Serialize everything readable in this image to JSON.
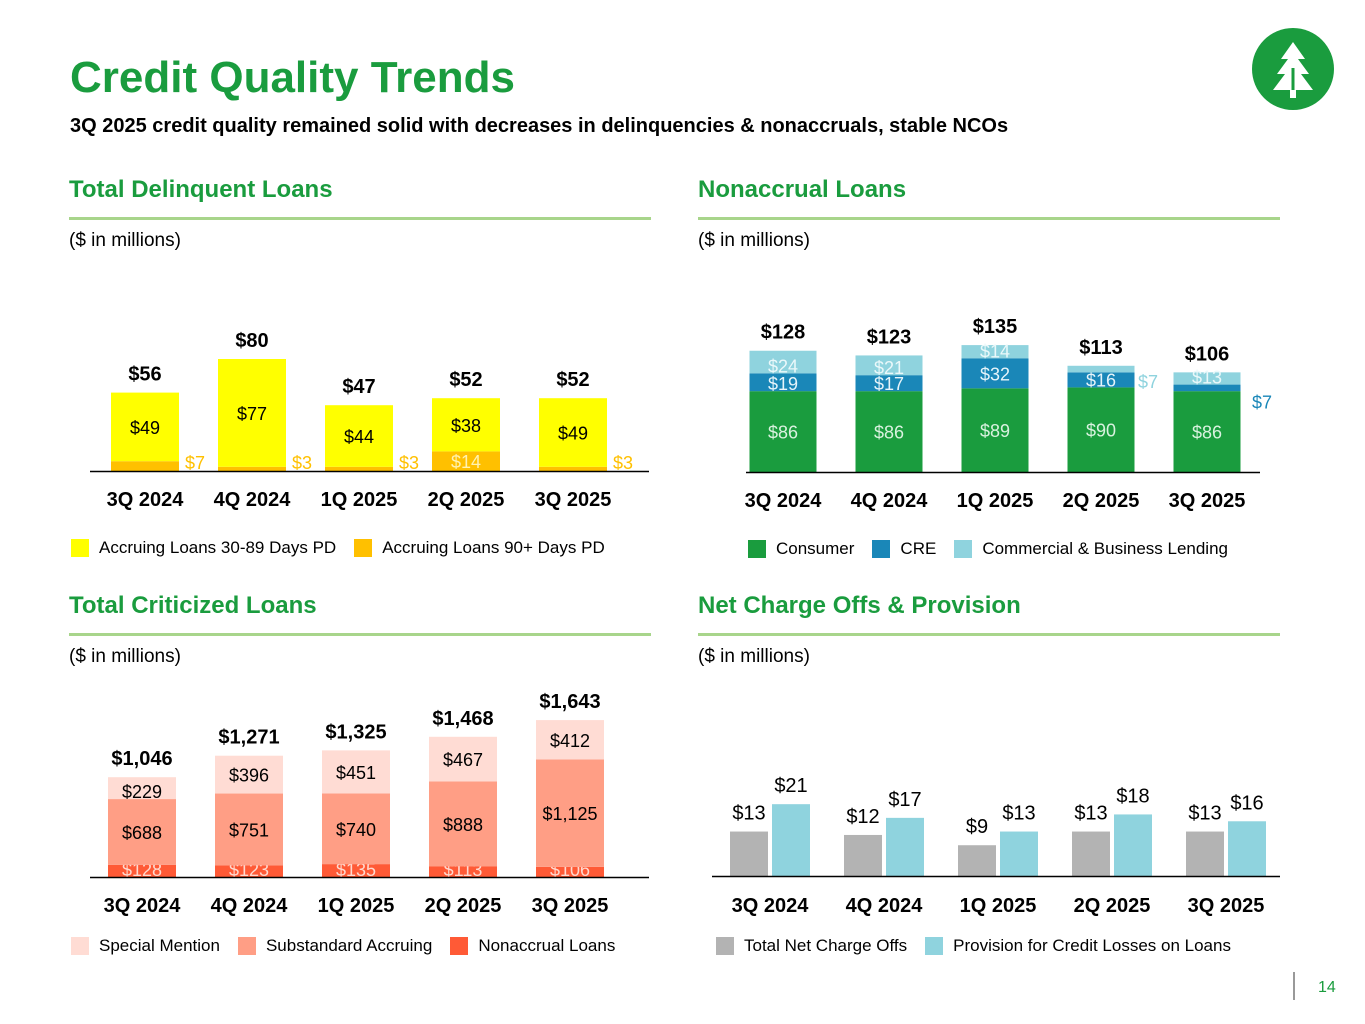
{
  "page": {
    "title": "Credit Quality Trends",
    "subtitle": "3Q 2025 credit quality remained solid with decreases in delinquencies & nonaccruals, stable NCOs",
    "page_number": "14",
    "logo_icon": "tree-logo-icon",
    "brand_color": "#1a9c3e"
  },
  "chart_data": [
    {
      "id": "delinquent",
      "type": "bar",
      "stacked": true,
      "title": "Total Delinquent Loans",
      "units": "($ in millions)",
      "categories": [
        "3Q 2024",
        "4Q 2024",
        "1Q 2025",
        "2Q 2025",
        "3Q 2025"
      ],
      "series": [
        {
          "name": "Accruing Loans 90+ Days PD",
          "color": "#ffc000",
          "label_color": "#ffc000",
          "values": [
            7,
            3,
            3,
            14,
            3
          ],
          "labels": [
            "$7",
            "$3",
            "$3",
            "$14",
            "$3"
          ]
        },
        {
          "name": "Accruing Loans 30-89 Days PD",
          "color": "#ffff00",
          "label_color": "#000000",
          "values": [
            49,
            77,
            44,
            38,
            49
          ],
          "labels": [
            "$49",
            "$77",
            "$44",
            "$38",
            "$49"
          ]
        }
      ],
      "totals": [
        "$56",
        "$80",
        "$47",
        "$52",
        "$52"
      ],
      "legend": [
        {
          "label": "Accruing Loans 30-89 Days PD",
          "color": "#ffff00"
        },
        {
          "label": "Accruing Loans 90+ Days PD",
          "color": "#ffc000"
        }
      ]
    },
    {
      "id": "nonaccrual",
      "type": "bar",
      "stacked": true,
      "title": "Nonaccrual Loans",
      "units": "($ in millions)",
      "categories": [
        "3Q 2024",
        "4Q 2024",
        "1Q 2025",
        "2Q 2025",
        "3Q 2025"
      ],
      "series": [
        {
          "name": "Consumer",
          "color": "#1a9c3e",
          "label_color": "#d9f2df",
          "values": [
            86,
            86,
            89,
            90,
            86
          ],
          "labels": [
            "$86",
            "$86",
            "$89",
            "$90",
            "$86"
          ]
        },
        {
          "name": "CRE",
          "color": "#1a87b8",
          "label_color": "#e6f4fa",
          "values": [
            19,
            17,
            32,
            16,
            7
          ],
          "labels": [
            "$19",
            "$17",
            "$32",
            "$16",
            "$7"
          ]
        },
        {
          "name": "Commercial & Business Lending",
          "color": "#8fd3de",
          "label_color": "#eaf8fa",
          "values": [
            24,
            21,
            14,
            7,
            13
          ],
          "labels": [
            "$24",
            "$21",
            "$14",
            "$7",
            "$13"
          ]
        }
      ],
      "totals": [
        "$128",
        "$123",
        "$135",
        "$113",
        "$106"
      ],
      "legend": [
        {
          "label": "Consumer",
          "color": "#1a9c3e"
        },
        {
          "label": "CRE",
          "color": "#1a87b8"
        },
        {
          "label": "Commercial & Business Lending",
          "color": "#8fd3de"
        }
      ]
    },
    {
      "id": "criticized",
      "type": "bar",
      "stacked": true,
      "title": "Total Criticized Loans",
      "units": "($ in millions)",
      "categories": [
        "3Q 2024",
        "4Q 2024",
        "1Q 2025",
        "2Q 2025",
        "3Q 2025"
      ],
      "series": [
        {
          "name": "Nonaccrual Loans",
          "color": "#ff5a36",
          "label_color": "#ffd9cf",
          "values": [
            128,
            123,
            135,
            113,
            106
          ],
          "labels": [
            "$128",
            "$123",
            "$135",
            "$113",
            "$106"
          ]
        },
        {
          "name": "Substandard Accruing",
          "color": "#ff9e85",
          "label_color": "#000000",
          "values": [
            688,
            751,
            740,
            888,
            1125
          ],
          "labels": [
            "$688",
            "$751",
            "$740",
            "$888",
            "$1,125"
          ]
        },
        {
          "name": "Special Mention",
          "color": "#ffdcd4",
          "label_color": "#000000",
          "values": [
            229,
            396,
            451,
            467,
            412
          ],
          "labels": [
            "$229",
            "$396",
            "$451",
            "$467",
            "$412"
          ]
        }
      ],
      "totals": [
        "$1,046",
        "$1,271",
        "$1,325",
        "$1,468",
        "$1,643"
      ],
      "legend": [
        {
          "label": "Special Mention",
          "color": "#ffdcd4"
        },
        {
          "label": "Substandard Accruing",
          "color": "#ff9e85"
        },
        {
          "label": "Nonaccrual Loans",
          "color": "#ff5a36"
        }
      ]
    },
    {
      "id": "nco",
      "type": "bar",
      "stacked": false,
      "title": "Net Charge Offs & Provision",
      "units": "($ in millions)",
      "categories": [
        "3Q 2024",
        "4Q 2024",
        "1Q 2025",
        "2Q 2025",
        "3Q 2025"
      ],
      "series": [
        {
          "name": "Total Net Charge Offs",
          "color": "#b3b3b3",
          "label_color": "#000000",
          "values": [
            13,
            12,
            9,
            13,
            13
          ],
          "labels": [
            "$13",
            "$12",
            "$9",
            "$13",
            "$13"
          ]
        },
        {
          "name": "Provision for Credit Losses on Loans",
          "color": "#8fd3de",
          "label_color": "#000000",
          "values": [
            21,
            17,
            13,
            18,
            16
          ],
          "labels": [
            "$21",
            "$17",
            "$13",
            "$18",
            "$16"
          ]
        }
      ],
      "legend": [
        {
          "label": "Total Net Charge Offs",
          "color": "#b3b3b3"
        },
        {
          "label": "Provision for Credit Losses on Loans",
          "color": "#8fd3de"
        }
      ]
    }
  ]
}
